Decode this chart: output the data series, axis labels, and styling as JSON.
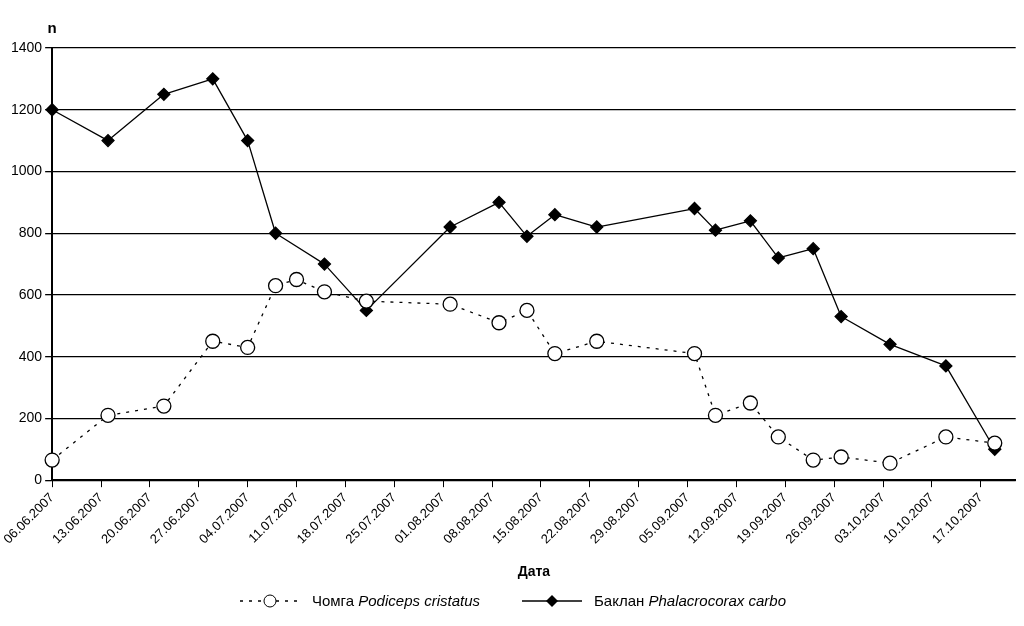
{
  "chart_data": {
    "type": "line",
    "ylabel": "n",
    "xlabel": "Дата",
    "legend": "bottom",
    "grid": "y",
    "xlim": [
      "2007-06-06",
      "2007-10-22"
    ],
    "xticks": [
      {
        "value": "2007-06-06",
        "label": "06.06.2007"
      },
      {
        "value": "2007-06-13",
        "label": "13.06.2007"
      },
      {
        "value": "2007-06-20",
        "label": "20.06.2007"
      },
      {
        "value": "2007-06-27",
        "label": "27.06.2007"
      },
      {
        "value": "2007-07-04",
        "label": "04.07.2007"
      },
      {
        "value": "2007-07-11",
        "label": "11.07.2007"
      },
      {
        "value": "2007-07-18",
        "label": "18.07.2007"
      },
      {
        "value": "2007-07-25",
        "label": "25.07.2007"
      },
      {
        "value": "2007-08-01",
        "label": "01.08.2007"
      },
      {
        "value": "2007-08-08",
        "label": "08.08.2007"
      },
      {
        "value": "2007-08-15",
        "label": "15.08.2007"
      },
      {
        "value": "2007-08-22",
        "label": "22.08.2007"
      },
      {
        "value": "2007-08-29",
        "label": "29.08.2007"
      },
      {
        "value": "2007-09-05",
        "label": "05.09.2007"
      },
      {
        "value": "2007-09-12",
        "label": "12.09.2007"
      },
      {
        "value": "2007-09-19",
        "label": "19.09.2007"
      },
      {
        "value": "2007-09-26",
        "label": "26.09.2007"
      },
      {
        "value": "2007-10-03",
        "label": "03.10.2007"
      },
      {
        "value": "2007-10-10",
        "label": "10.10.2007"
      },
      {
        "value": "2007-10-17",
        "label": "17.10.2007"
      }
    ],
    "ylim": [
      0,
      1400
    ],
    "yticks": [
      0,
      200,
      400,
      600,
      800,
      1000,
      1200,
      1400
    ],
    "series": [
      {
        "name": "Чомга Podiceps cristatus",
        "color": "#000000",
        "marker": "circle",
        "line_style": "dotted",
        "x": [
          "2007-06-06",
          "2007-06-14",
          "2007-06-22",
          "2007-06-29",
          "2007-07-04",
          "2007-07-08",
          "2007-07-11",
          "2007-07-15",
          "2007-07-21",
          "2007-08-02",
          "2007-08-09",
          "2007-08-13",
          "2007-08-17",
          "2007-08-23",
          "2007-09-06",
          "2007-09-09",
          "2007-09-14",
          "2007-09-18",
          "2007-09-23",
          "2007-09-27",
          "2007-10-04",
          "2007-10-12",
          "2007-10-19"
        ],
        "values": [
          65,
          210,
          240,
          450,
          430,
          630,
          650,
          610,
          580,
          570,
          510,
          550,
          410,
          450,
          410,
          210,
          250,
          140,
          65,
          75,
          55,
          140,
          120
        ]
      },
      {
        "name": "Баклан Phalacrocorax carbo",
        "color": "#000000",
        "marker": "diamond",
        "line_style": "solid",
        "x": [
          "2007-06-06",
          "2007-06-14",
          "2007-06-22",
          "2007-06-29",
          "2007-07-04",
          "2007-07-08",
          "2007-07-15",
          "2007-07-21",
          "2007-08-02",
          "2007-08-09",
          "2007-08-13",
          "2007-08-17",
          "2007-08-23",
          "2007-09-06",
          "2007-09-09",
          "2007-09-14",
          "2007-09-18",
          "2007-09-23",
          "2007-09-27",
          "2007-10-04",
          "2007-10-12",
          "2007-10-19"
        ],
        "values": [
          1200,
          1100,
          1250,
          1300,
          1100,
          800,
          700,
          550,
          820,
          900,
          790,
          860,
          820,
          880,
          810,
          840,
          720,
          750,
          530,
          440,
          370,
          100
        ]
      }
    ]
  }
}
